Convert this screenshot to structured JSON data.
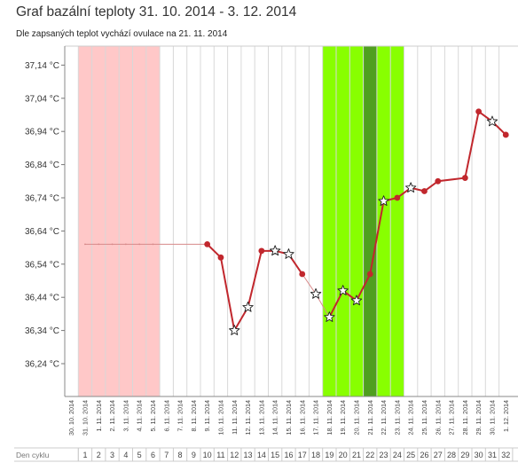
{
  "header": {
    "title": "Graf bazální teploty 31. 10. 2014 - 3. 12. 2014",
    "subtitle": "Dle zapsaných teplot vychází ovulace na 21. 11. 2014"
  },
  "colors": {
    "line": "#c1272d",
    "line_faint": "#d88a8a",
    "menstruation": "#ffc8c8",
    "fertile": "#88ff00",
    "fertile_dark": "#66cc22",
    "ovulation": "#4f9f1f",
    "grid": "#d8d8d8"
  },
  "chart_data": {
    "type": "line",
    "title": "Graf bazální teploty 31. 10. 2014 - 3. 12. 2014",
    "subtitle": "Dle zapsaných teplot vychází ovulace na 21. 11. 2014",
    "ylabel": "",
    "ylim": [
      36.14,
      37.19
    ],
    "y_ticks": [
      "36,24 °C",
      "36,34 °C",
      "36,44 °C",
      "36,54 °C",
      "36,64 °C",
      "36,74 °C",
      "36,84 °C",
      "36,94 °C",
      "37,04 °C",
      "37,14 °C"
    ],
    "y_tick_values": [
      36.24,
      36.34,
      36.44,
      36.54,
      36.64,
      36.74,
      36.84,
      36.94,
      37.04,
      37.14
    ],
    "x_labels": [
      "30. 10. 2014",
      "31. 10. 2014",
      "1. 11. 2014",
      "2. 11. 2014",
      "3. 11. 2014",
      "4. 11. 2014",
      "5. 11. 2014",
      "6. 11. 2014",
      "7. 11. 2014",
      "8. 11. 2014",
      "9. 11. 2014",
      "10. 11. 2014",
      "11. 11. 2014",
      "12. 11. 2014",
      "13. 11. 2014",
      "14. 11. 2014",
      "15. 11. 2014",
      "16. 11. 2014",
      "17. 11. 2014",
      "18. 11. 2014",
      "19. 11. 2014",
      "20. 11. 2014",
      "21. 11. 2014",
      "22. 11. 2014",
      "23. 11. 2014",
      "24. 11. 2014",
      "25. 11. 2014",
      "26. 11. 2014",
      "27. 11. 2014",
      "28. 11. 2014",
      "29. 11. 2014",
      "30. 11. 2014",
      "1. 12. 2014"
    ],
    "cycle_label": "Den cyklu",
    "cycle_days": [
      "1",
      "2",
      "3",
      "4",
      "5",
      "6",
      "7",
      "8",
      "9",
      "10",
      "11",
      "12",
      "13",
      "14",
      "15",
      "16",
      "17",
      "18",
      "19",
      "20",
      "21",
      "22",
      "23",
      "24",
      "25",
      "26",
      "27",
      "28",
      "29",
      "30",
      "31",
      "32"
    ],
    "menstruation_days": [
      "31. 10. 2014",
      "1. 11. 2014",
      "2. 11. 2014",
      "3. 11. 2014",
      "4. 11. 2014",
      "5. 11. 2014"
    ],
    "fertile_days": [
      "18. 11. 2014",
      "19. 11. 2014",
      "20. 11. 2014",
      "21. 11. 2014",
      "22. 11. 2014",
      "23. 11. 2014"
    ],
    "ovulation_day": "21. 11. 2014",
    "points": [
      {
        "date": "31. 10. 2014",
        "temp": 36.6,
        "marker": "none"
      },
      {
        "date": "1. 11. 2014",
        "temp": 36.6,
        "marker": "none"
      },
      {
        "date": "2. 11. 2014",
        "temp": 36.6,
        "marker": "none"
      },
      {
        "date": "3. 11. 2014",
        "temp": 36.6,
        "marker": "none"
      },
      {
        "date": "4. 11. 2014",
        "temp": 36.6,
        "marker": "none"
      },
      {
        "date": "5. 11. 2014",
        "temp": 36.6,
        "marker": "none"
      },
      {
        "date": "9. 11. 2014",
        "temp": 36.6,
        "marker": "dot"
      },
      {
        "date": "10. 11. 2014",
        "temp": 36.56,
        "marker": "dot"
      },
      {
        "date": "11. 11. 2014",
        "temp": 36.34,
        "marker": "star"
      },
      {
        "date": "12. 11. 2014",
        "temp": 36.41,
        "marker": "star"
      },
      {
        "date": "13. 11. 2014",
        "temp": 36.58,
        "marker": "dot"
      },
      {
        "date": "14. 11. 2014",
        "temp": 36.58,
        "marker": "star"
      },
      {
        "date": "15. 11. 2014",
        "temp": 36.57,
        "marker": "star"
      },
      {
        "date": "16. 11. 2014",
        "temp": 36.51,
        "marker": "dot"
      },
      {
        "date": "17. 11. 2014",
        "temp": 36.45,
        "marker": "star"
      },
      {
        "date": "18. 11. 2014",
        "temp": 36.38,
        "marker": "star"
      },
      {
        "date": "19. 11. 2014",
        "temp": 36.46,
        "marker": "star"
      },
      {
        "date": "20. 11. 2014",
        "temp": 36.43,
        "marker": "star"
      },
      {
        "date": "21. 11. 2014",
        "temp": 36.51,
        "marker": "dot"
      },
      {
        "date": "22. 11. 2014",
        "temp": 36.73,
        "marker": "star"
      },
      {
        "date": "23. 11. 2014",
        "temp": 36.74,
        "marker": "dot"
      },
      {
        "date": "24. 11. 2014",
        "temp": 36.77,
        "marker": "star"
      },
      {
        "date": "25. 11. 2014",
        "temp": 36.76,
        "marker": "dot"
      },
      {
        "date": "26. 11. 2014",
        "temp": 36.79,
        "marker": "dot"
      },
      {
        "date": "28. 11. 2014",
        "temp": 36.8,
        "marker": "dot"
      },
      {
        "date": "29. 11. 2014",
        "temp": 37.0,
        "marker": "dot"
      },
      {
        "date": "30. 11. 2014",
        "temp": 36.97,
        "marker": "star"
      },
      {
        "date": "1. 12. 2014",
        "temp": 36.93,
        "marker": "dot"
      }
    ],
    "faint_segments": [
      [
        "16. 11. 2014",
        "17. 11. 2014"
      ],
      [
        "17. 11. 2014",
        "18. 11. 2014"
      ]
    ],
    "grid": true,
    "legend": "none"
  }
}
